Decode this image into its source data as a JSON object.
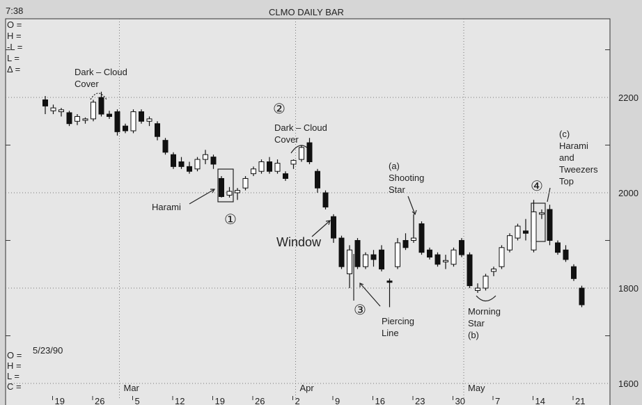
{
  "chart_data": {
    "type": "candlestick",
    "title": "CLMO DAILY BAR",
    "time": "7:38",
    "date": "5/23/90",
    "top_fields": [
      "O =",
      "H =",
      "-L =",
      "L =",
      "Δ ="
    ],
    "bottom_fields": [
      "O =",
      "H =",
      "L =",
      "C ="
    ],
    "categories": [
      null,
      "19",
      null,
      null,
      null,
      null,
      "26",
      null,
      null,
      null,
      null,
      "5",
      null,
      null,
      null,
      null,
      "12",
      null,
      null,
      null,
      null,
      "19",
      null,
      null,
      null,
      null,
      "26",
      null,
      null,
      null,
      null,
      "2",
      null,
      null,
      null,
      null,
      "9",
      null,
      null,
      null,
      null,
      "16",
      null,
      null,
      null,
      null,
      "23",
      null,
      null,
      null,
      null,
      "30",
      null,
      null,
      null,
      null,
      "7",
      null,
      null,
      null,
      null,
      "14",
      null,
      null,
      null,
      null,
      "21",
      null
    ],
    "months": [
      {
        "label": "Mar",
        "category": 9
      },
      {
        "label": "Apr",
        "category": 31
      },
      {
        "label": "May",
        "category": 52
      }
    ],
    "open": [
      2195,
      2172,
      2170,
      2168,
      2150,
      2152,
      2155,
      2200,
      2165,
      2170,
      2140,
      2130,
      2170,
      2150,
      2145,
      2110,
      2080,
      2065,
      2055,
      2050,
      2070,
      2075,
      2030,
      1995,
      2000,
      2010,
      2040,
      2045,
      2065,
      2045,
      2040,
      2060,
      2070,
      2105,
      2045,
      2000,
      1950,
      1905,
      1830,
      1900,
      1845,
      1870,
      1880,
      1815,
      1845,
      1900,
      1900,
      1935,
      1880,
      1870,
      1855,
      1850,
      1900,
      1870,
      1795,
      1800,
      1835,
      1845,
      1880,
      1905,
      1920,
      1880,
      1955,
      1965,
      1895,
      1880,
      1845,
      1800
    ],
    "high": [
      2203,
      2185,
      2178,
      2172,
      2165,
      2158,
      2195,
      2212,
      2172,
      2175,
      2145,
      2175,
      2175,
      2160,
      2150,
      2115,
      2085,
      2075,
      2065,
      2075,
      2090,
      2080,
      2035,
      2012,
      2010,
      2035,
      2055,
      2070,
      2075,
      2070,
      2045,
      2070,
      2100,
      2115,
      2050,
      2005,
      1955,
      1910,
      1890,
      1905,
      1875,
      1880,
      1890,
      1820,
      1905,
      1915,
      1955,
      1940,
      1885,
      1875,
      1870,
      1885,
      1905,
      1875,
      1810,
      1830,
      1845,
      1890,
      1915,
      1935,
      1945,
      1985,
      1965,
      1975,
      1900,
      1890,
      1850,
      1805
    ],
    "low": [
      2165,
      2165,
      2160,
      2140,
      2142,
      2145,
      2150,
      2160,
      2155,
      2120,
      2125,
      2125,
      2145,
      2140,
      2110,
      2080,
      2050,
      2050,
      2040,
      2045,
      2060,
      2050,
      1990,
      1990,
      1985,
      2005,
      2035,
      2040,
      2040,
      2040,
      2025,
      2050,
      2065,
      2060,
      2000,
      1965,
      1895,
      1840,
      1800,
      1840,
      1840,
      1845,
      1835,
      1760,
      1840,
      1880,
      1895,
      1870,
      1860,
      1845,
      1840,
      1845,
      1865,
      1800,
      1790,
      1795,
      1825,
      1840,
      1875,
      1900,
      1900,
      1875,
      1945,
      1890,
      1870,
      1855,
      1815,
      1760
    ],
    "close": [
      2182,
      2178,
      2174,
      2145,
      2160,
      2155,
      2190,
      2165,
      2160,
      2128,
      2130,
      2170,
      2150,
      2155,
      2118,
      2085,
      2055,
      2055,
      2045,
      2070,
      2080,
      2060,
      1992,
      2003,
      2005,
      2030,
      2050,
      2065,
      2045,
      2062,
      2030,
      2068,
      2095,
      2065,
      2010,
      1970,
      1905,
      1845,
      1880,
      1845,
      1870,
      1860,
      1840,
      1812,
      1895,
      1885,
      1905,
      1875,
      1865,
      1850,
      1858,
      1880,
      1870,
      1805,
      1800,
      1825,
      1840,
      1885,
      1910,
      1930,
      1915,
      1960,
      1958,
      1900,
      1875,
      1860,
      1820,
      1765
    ],
    "up_color": "#ffffff",
    "down_color": "#111111",
    "ylim": [
      1565,
      2365
    ],
    "yticks": [
      1600,
      1800,
      2000,
      2200
    ],
    "minor_yticks": [
      1700,
      1900,
      2100,
      2300
    ],
    "grid": true,
    "annotations": [
      [
        "Dark – Cloud",
        "Cover"
      ],
      [
        "②"
      ],
      [
        "Dark – Cloud",
        "Cover"
      ],
      [
        "Harami"
      ],
      [
        "①"
      ],
      [
        "Window"
      ],
      [
        "③"
      ],
      [
        "Piercing",
        "Line"
      ],
      [
        "(a)",
        "Shooting",
        "Star"
      ],
      [
        "Morning",
        "Star",
        "(b)"
      ],
      [
        "④"
      ],
      [
        "(c)",
        "Harami",
        "and",
        "Tweezers",
        "Top"
      ]
    ]
  }
}
